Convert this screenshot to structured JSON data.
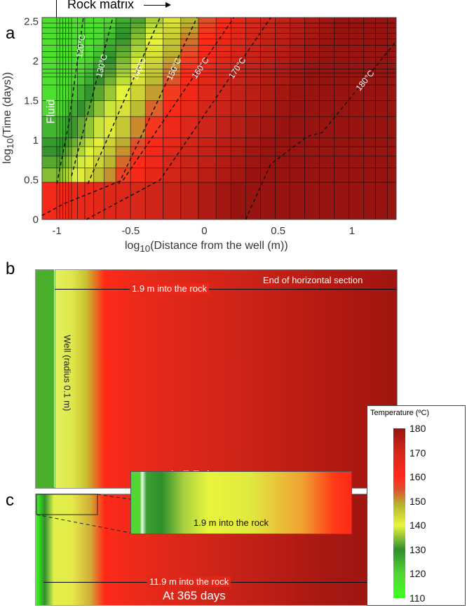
{
  "panels": {
    "a": "a",
    "b": "b",
    "c": "c"
  },
  "chart_data": {
    "type": "heatmap",
    "title": "",
    "xlabel": "log10(Distance from the well (m))",
    "xlabel_main": "log",
    "xlabel_sub": "10",
    "xlabel_rest": "(Distance from the well (m))",
    "ylabel_main": "log",
    "ylabel_sub": "10",
    "ylabel_rest": "(Time (days))",
    "xlim": [
      -1.1,
      1.3
    ],
    "ylim": [
      0,
      2.55
    ],
    "xticks": [
      "-1",
      "-0.5",
      "0",
      "0.5",
      "1"
    ],
    "xtick_values": [
      -1,
      -0.5,
      0,
      0.5,
      1
    ],
    "yticks": [
      "0",
      "0.5",
      "1",
      "1.5",
      "2",
      "2.5"
    ],
    "ytick_values": [
      0,
      0.5,
      1,
      1.5,
      2,
      2.5
    ],
    "x_edges": [
      -1.1,
      -1,
      -0.98,
      -0.96,
      -0.94,
      -0.92,
      -0.9,
      -0.86,
      -0.81,
      -0.75,
      -0.68,
      -0.6,
      -0.5,
      -0.4,
      -0.28,
      -0.16,
      -0.04,
      0.08,
      0.18,
      0.28,
      0.38,
      0.48,
      0.58,
      0.68,
      0.78,
      0.88,
      0.98,
      1.08,
      1.16,
      1.24,
      1.3
    ],
    "y_edges": [
      0,
      0.47,
      0.65,
      0.8,
      0.92,
      1.03,
      1.3,
      1.5,
      1.7,
      1.8,
      1.85,
      1.9,
      1.97,
      2.05,
      2.12,
      2.2,
      2.28,
      2.35,
      2.42,
      2.48,
      2.55
    ],
    "contours": [
      {
        "label": "120°C",
        "level": 120,
        "points": [
          [
            -1.0,
            0.45
          ],
          [
            -0.92,
            1.2
          ],
          [
            -0.82,
            2.55
          ]
        ]
      },
      {
        "label": "130°C",
        "level": 130,
        "points": [
          [
            -0.9,
            0.55
          ],
          [
            -0.62,
            2.55
          ]
        ]
      },
      {
        "label": "140°C",
        "level": 140,
        "points": [
          [
            -0.79,
            0.45
          ],
          [
            -0.3,
            2.55
          ]
        ]
      },
      {
        "label": "150°C",
        "level": 150,
        "points": [
          [
            -0.58,
            0.45
          ],
          [
            -0.05,
            2.55
          ]
        ]
      },
      {
        "label": "160°C",
        "level": 160,
        "points": [
          [
            -1.1,
            0.05
          ],
          [
            -0.95,
            0.2
          ],
          [
            -0.55,
            0.5
          ],
          [
            0.2,
            2.55
          ]
        ]
      },
      {
        "label": "170°C",
        "level": 170,
        "points": [
          [
            -0.8,
            0
          ],
          [
            -0.3,
            0.5
          ],
          [
            0.45,
            2.55
          ]
        ]
      },
      {
        "label": "180°C",
        "level": 180,
        "points": [
          [
            0.28,
            0
          ],
          [
            0.45,
            0.7
          ],
          [
            0.7,
            1.05
          ],
          [
            0.8,
            1.1
          ],
          [
            1.3,
            2.25
          ]
        ]
      }
    ],
    "annotations": {
      "rock_matrix": "Rock matrix",
      "fluid": "Fluid"
    }
  },
  "panel_b": {
    "well_label": "Well (radius 0.1 m)",
    "distance_label": "1.9 m into the rock",
    "end_label": "End of horizontal section",
    "time_label": "At 7.7 days"
  },
  "panel_c": {
    "inset_label": "1.9 m into the rock",
    "distance_label": "11.9 m into the rock",
    "time_label": "At 365 days"
  },
  "colorbar": {
    "title": "Temperature (ºC)",
    "ticks": [
      "180",
      "170",
      "160",
      "150",
      "140",
      "130",
      "120",
      "110"
    ],
    "min": 110,
    "max": 180,
    "stops": [
      [
        110,
        "#3cff1e"
      ],
      [
        120,
        "#52d634"
      ],
      [
        130,
        "#2f8f2c"
      ],
      [
        140,
        "#e8f53c"
      ],
      [
        148,
        "#b8b830"
      ],
      [
        155,
        "#e0502a"
      ],
      [
        160,
        "#ff2a18"
      ],
      [
        170,
        "#d6281a"
      ],
      [
        180,
        "#981410"
      ]
    ]
  }
}
